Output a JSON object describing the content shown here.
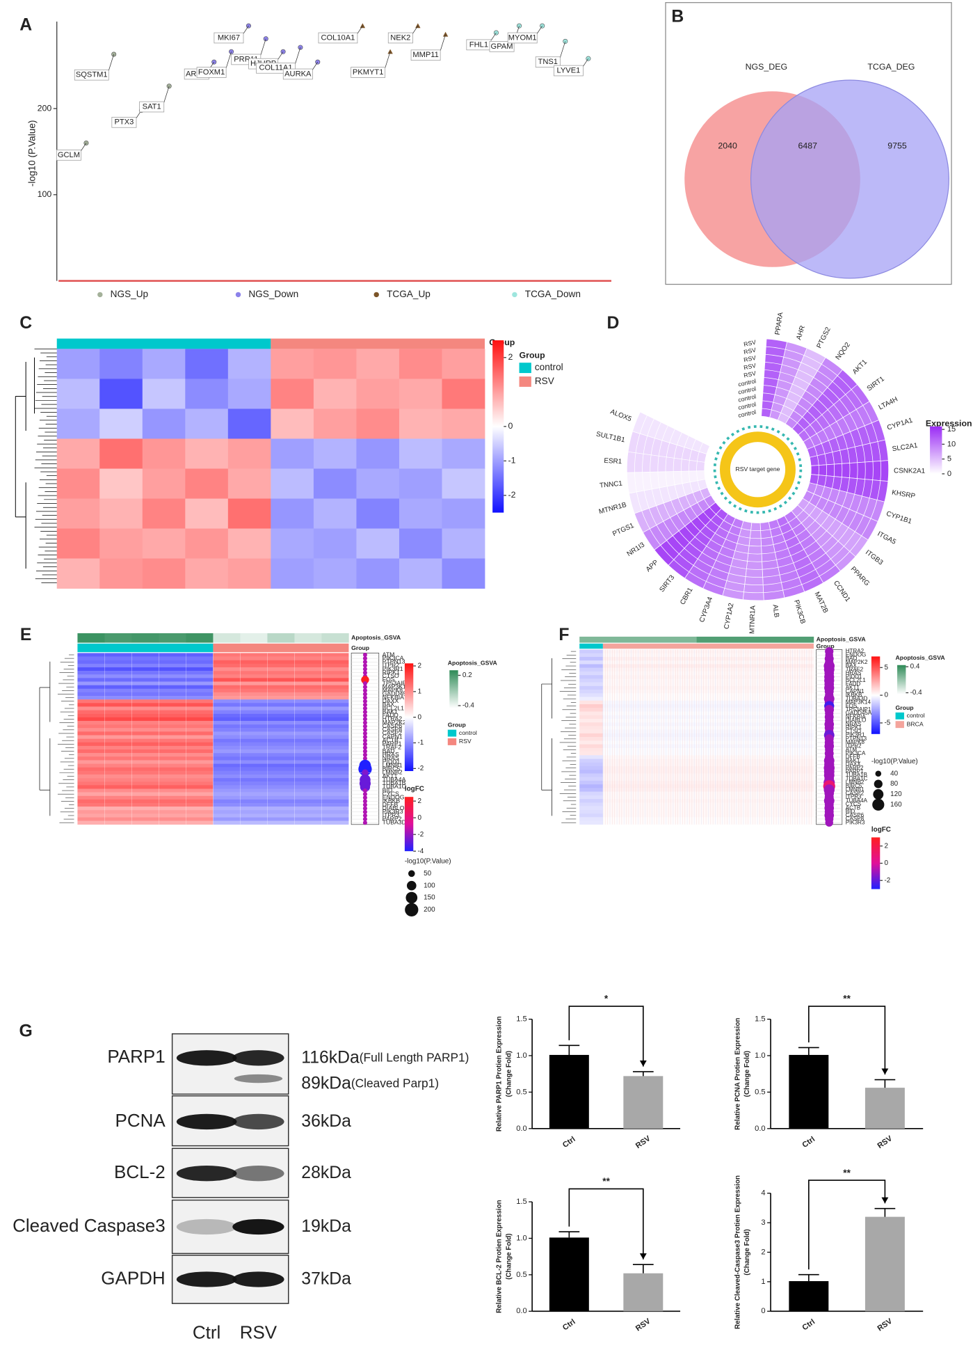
{
  "panels": [
    "A",
    "B",
    "C",
    "D",
    "E",
    "F",
    "G"
  ],
  "blot": {
    "rows": [
      {
        "protein": "PARP1",
        "size": "116kDa",
        "note": "(Full Length PARP1)"
      },
      {
        "protein": "PCNA",
        "size": "36kDa"
      },
      {
        "protein": "BCL-2",
        "size": "28kDa"
      },
      {
        "protein": "Cleaved Caspase3",
        "size": "19kDa"
      },
      {
        "protein": "GAPDH",
        "size": "37kDa"
      }
    ],
    "extra": {
      "size": "89kDa",
      "note": "(Cleaved Parp1)"
    },
    "lanes": [
      "Ctrl",
      "RSV"
    ]
  },
  "chart_data": [
    {
      "type": "manhattan",
      "ylabel": "-log10 (P.Value)",
      "ylim": [
        0,
        296
      ],
      "yticks": [
        100,
        200
      ],
      "series": [
        {
          "name": "NGS_Up",
          "color": "#a4b19a",
          "labels": [
            "GCLM",
            "SQSTM1",
            "PTX3",
            "SAT1"
          ],
          "values": [
            160,
            263,
            198,
            226
          ]
        },
        {
          "name": "NGS_Down",
          "color": "#8c82ea",
          "labels": [
            "AREG",
            "FOXM1",
            "MKI67",
            "PRR11",
            "HJURP",
            "COL11A1",
            "AURKA"
          ],
          "values": [
            254,
            266,
            296,
            281,
            266,
            271,
            254
          ]
        },
        {
          "name": "TCGA_Up",
          "color": "#7b5428",
          "labels": [
            "COL10A1",
            "PKMYT1",
            "NEK2",
            "MMP11"
          ],
          "values": [
            296,
            266,
            296,
            286
          ]
        },
        {
          "name": "TCGA_Down",
          "color": "#9ee6de",
          "labels": [
            "FHL1",
            "GPAM",
            "MYOM1",
            "TNS1",
            "LYVE1"
          ],
          "values": [
            288,
            296,
            296,
            278,
            258
          ]
        }
      ]
    },
    {
      "type": "venn",
      "sets": [
        "NGS_DEG",
        "TCGA_DEG"
      ],
      "values": [
        2040,
        6487,
        9755
      ],
      "colors": [
        "#f7a3a3",
        "#a5a2f5"
      ]
    },
    {
      "type": "heatmap",
      "legend_title": "Group",
      "groups": [
        {
          "name": "control",
          "color": "#00c8cc"
        },
        {
          "name": "RSV",
          "color": "#f4877f"
        }
      ],
      "clim": [
        -2.5,
        2.5
      ],
      "cticks": [
        2,
        0,
        -1,
        -2
      ],
      "values": [
        [
          -1.0,
          -1.3,
          -0.9,
          -1.5,
          -0.8,
          1.0,
          1.1,
          0.9,
          1.2,
          1.0
        ],
        [
          -0.7,
          -1.8,
          -0.6,
          -1.2,
          -0.9,
          1.3,
          0.8,
          1.0,
          0.9,
          1.4
        ],
        [
          -0.9,
          -0.5,
          -1.1,
          -0.8,
          -1.6,
          0.7,
          1.0,
          1.2,
          0.8,
          0.9
        ],
        [
          0.9,
          1.5,
          1.1,
          0.8,
          1.0,
          -1.0,
          -0.8,
          -1.1,
          -0.7,
          -0.9
        ],
        [
          1.2,
          0.6,
          1.0,
          1.3,
          0.9,
          -0.7,
          -1.2,
          -0.9,
          -1.0,
          -0.6
        ],
        [
          1.0,
          0.8,
          1.3,
          0.7,
          1.5,
          -1.1,
          -0.8,
          -1.3,
          -0.9,
          -1.0
        ],
        [
          1.3,
          1.0,
          0.9,
          1.1,
          0.8,
          -0.9,
          -1.0,
          -0.7,
          -1.2,
          -0.8
        ],
        [
          0.8,
          1.1,
          1.2,
          0.9,
          1.0,
          -1.0,
          -0.9,
          -1.1,
          -0.8,
          -1.2
        ]
      ]
    },
    {
      "type": "polar_heatmap",
      "legend_title": "Expression",
      "center_label": "RSV target gene",
      "clim": [
        0,
        16
      ],
      "cticks": [
        15,
        10,
        5,
        0
      ],
      "samples": [
        "RSV",
        "RSV",
        "RSV",
        "RSV",
        "RSV",
        "control",
        "control",
        "control",
        "control",
        "control"
      ],
      "categories": [
        "PPARA",
        "AHR",
        "PTGS2",
        "NQO2",
        "AKT1",
        "SIRT1",
        "LTA4H",
        "CYP1A1",
        "SLC2A1",
        "CSNK2A1",
        "KHSRP",
        "CYP1B1",
        "ITGA5",
        "ITGB3",
        "PPARG",
        "CCND1",
        "MAT2B",
        "PIK3CB",
        "ALB",
        "MTNR1A",
        "CYP1A2",
        "CYP3A4",
        "CBR1",
        "SIRT3",
        "APP",
        "NR1I3",
        "PTGS1",
        "MTNR1B",
        "TNNC1",
        "ESR1",
        "SULT1B1",
        "ALOX5"
      ],
      "values": [
        12,
        8,
        5,
        9,
        12,
        11,
        10,
        12,
        13,
        14,
        13,
        9,
        9,
        7,
        8,
        10,
        11,
        10,
        9,
        8,
        8,
        10,
        11,
        13,
        14,
        9,
        6,
        2,
        1,
        3,
        3,
        2
      ]
    },
    {
      "type": "gene_heatmap",
      "gsva_title": "Apoptosis_GSVA",
      "group_title": "Group",
      "groups": [
        {
          "name": "control",
          "color": "#00c8cc"
        },
        {
          "name": "RSV",
          "color": "#f4877f"
        }
      ],
      "clim": [
        -2.1,
        2.1
      ],
      "cticks": [
        2,
        1,
        0,
        -1,
        -2
      ],
      "gsva_lim": [
        -0.45,
        0.3
      ],
      "gsva_ticks": [
        0.2,
        -0.4
      ],
      "logfc_title": "logFC",
      "logfc_lim": [
        -4,
        2.5
      ],
      "logfc_ticks": [
        2,
        0,
        -2,
        -4
      ],
      "size_title": "-log10(P.Value)",
      "size_ticks": [
        50,
        100,
        150,
        200
      ],
      "gsva": [
        0.25,
        0.2,
        0.22,
        0.2,
        0.24,
        -0.3,
        -0.35,
        -0.2,
        -0.3,
        -0.25
      ],
      "genes": [
        "ATM",
        "PIK3CA",
        "PTPN13",
        "ITPR2",
        "PIK3R1",
        "RIPK1",
        "CTSO",
        "FOS",
        "TP53AIP1",
        "MAP3K14",
        "MAPK8",
        "GADD45A",
        "NFKBIA",
        "DAXX",
        "BAX",
        "BCL2L1",
        "BAK1",
        "FADD",
        "HTRA2",
        "MAP2K2",
        "CASP6",
        "CASP8",
        "CASP2",
        "CAPN1",
        "ACTB",
        "PARP1",
        "TRAF2",
        "BAD",
        "HRAS",
        "NRAS",
        "PIDD1",
        "LMNB1",
        "BIRC5",
        "LMNB2",
        "AKT1",
        "TUBA4A",
        "TUBA1B",
        "TUBA1C",
        "BID",
        "CYCS",
        "ENDOG",
        "IKBKB",
        "DFFB",
        "DIABLO",
        "PIK3R3",
        "ITPR3",
        "PARP2",
        "TUBA3D"
      ],
      "control": [
        -1.4,
        -1.2,
        -1.3,
        -1.1,
        -1.5,
        -1.2,
        -1.0,
        -1.3,
        -0.9,
        -1.4,
        -1.1,
        -1.2,
        -1.0,
        1.2,
        1.5,
        1.0,
        1.3,
        1.4,
        1.6,
        1.1,
        1.2,
        1.0,
        1.3,
        0.9,
        1.2,
        1.4,
        1.1,
        1.3,
        1.0,
        1.2,
        0.9,
        1.1,
        1.3,
        1.2,
        1.0,
        1.1,
        1.2,
        1.4,
        1.0,
        0.8,
        1.1,
        1.3,
        1.2,
        0.7,
        0.9,
        0.8,
        1.0,
        0.7
      ],
      "treated": [
        1.2,
        1.1,
        1.4,
        1.3,
        1.0,
        1.2,
        1.1,
        1.5,
        0.9,
        1.3,
        1.2,
        1.0,
        0.9,
        -1.0,
        -1.2,
        -0.9,
        -1.1,
        -1.3,
        -1.4,
        -1.0,
        -1.2,
        -1.1,
        -0.9,
        -1.0,
        -1.2,
        -1.1,
        -1.0,
        -0.9,
        -1.1,
        -1.2,
        -1.0,
        -1.3,
        -1.2,
        -1.1,
        -1.0,
        -1.2,
        -1.1,
        -1.0,
        -0.9,
        -0.8,
        -0.9,
        -1.1,
        -1.0,
        -0.7,
        -0.8,
        -0.7,
        -0.9,
        -0.6
      ],
      "neglog10p": [
        20,
        20,
        20,
        20,
        20,
        20,
        20,
        70,
        20,
        20,
        20,
        20,
        20,
        20,
        20,
        20,
        20,
        20,
        20,
        20,
        20,
        20,
        20,
        20,
        20,
        20,
        20,
        20,
        20,
        20,
        20,
        150,
        200,
        50,
        20,
        130,
        140,
        110,
        20,
        20,
        20,
        20,
        20,
        20,
        20,
        20,
        20,
        20
      ],
      "logfc": [
        -1,
        -1,
        -1,
        -1,
        -1,
        -1,
        -1,
        2.5,
        -1,
        -1,
        -1,
        -1,
        -1,
        -1,
        -1,
        -1,
        -1,
        -1,
        -1,
        -1,
        -1,
        -1,
        -1,
        -1,
        -1,
        -1,
        -1,
        -1,
        -1,
        -1,
        -1,
        -4,
        -4,
        -2,
        -1,
        -2.5,
        -2.5,
        -2.5,
        -1,
        -1,
        -1,
        -1,
        -1,
        -1,
        -1,
        -1,
        -1,
        -1
      ]
    },
    {
      "type": "gene_heatmap",
      "gsva_title": "Apoptosis_GSVA",
      "group_title": "Group",
      "groups": [
        {
          "name": "control",
          "color": "#00c8cc"
        },
        {
          "name": "BRCA",
          "color": "#f4a49c"
        }
      ],
      "clim": [
        -7,
        7
      ],
      "cticks": [
        5,
        0,
        -5
      ],
      "gsva_lim": [
        -0.45,
        0.45
      ],
      "gsva_ticks": [
        0.4,
        -0.4
      ],
      "logfc_title": "logFC",
      "logfc_lim": [
        -3,
        3
      ],
      "logfc_ticks": [
        2,
        0,
        -2
      ],
      "size_title": "-log10(P.Value)",
      "size_ticks": [
        40,
        80,
        120,
        160
      ],
      "gsva": [
        0.1,
        0.3
      ],
      "genes": [
        "HTRA2",
        "ENDOG",
        "BAD",
        "MAP2K2",
        "BAX",
        "TRAF2",
        "HRAS",
        "PIDD1",
        "BCL2L1",
        "FADD",
        "AKT1",
        "CAPN1",
        "IKBKB",
        "TUBA3D",
        "MAP3K14",
        "FOS",
        "TP53AIP1",
        "GADD45A",
        "NFKBIA",
        "DIABLO",
        "NRAS",
        "RIPK1",
        "CTSO",
        "PIK3R1",
        "PTPN13",
        "MAPK8",
        "ITPR2",
        "ATM",
        "PIK3CA",
        "DFFB",
        "BAK1",
        "DAXX",
        "PARP2",
        "PARP1",
        "TUBA1B",
        "TUBA1C",
        "LMNB2",
        "BIRC5",
        "LMNB1",
        "CASP2",
        "ITPR3",
        "TUBA4A",
        "CYCS",
        "ACTB",
        "BID",
        "CASP6",
        "CASP8",
        "PIK3R3"
      ],
      "control": [
        -1.5,
        -1.2,
        -1.8,
        -1.0,
        -2.0,
        -1.4,
        -1.1,
        -1.6,
        -1.3,
        -1.0,
        -1.5,
        -1.2,
        -0.9,
        -0.5,
        0.8,
        1.5,
        1.2,
        0.7,
        0.9,
        0.6,
        1.0,
        0.8,
        0.7,
        1.3,
        0.9,
        0.6,
        1.1,
        0.8,
        0.7,
        -0.8,
        -1.4,
        -1.6,
        -1.8,
        -2.0,
        -1.5,
        -1.3,
        -1.7,
        -2.2,
        -1.9,
        -1.2,
        -1.0,
        -1.4,
        -1.1,
        -0.9,
        -1.0,
        -1.2,
        -0.8,
        -0.7
      ],
      "treated": [
        0.3,
        0.2,
        0.4,
        0.2,
        0.5,
        0.3,
        0.2,
        0.3,
        0.2,
        0.2,
        0.3,
        0.2,
        0.1,
        0.1,
        -0.2,
        -0.3,
        -0.2,
        -0.1,
        -0.2,
        -0.1,
        -0.2,
        -0.1,
        -0.2,
        -0.3,
        -0.2,
        -0.1,
        -0.2,
        -0.1,
        -0.1,
        0.2,
        0.3,
        0.3,
        0.4,
        0.4,
        0.3,
        0.3,
        0.4,
        0.5,
        0.4,
        0.2,
        0.2,
        0.3,
        0.2,
        0.2,
        0.2,
        0.2,
        0.1,
        0.1
      ],
      "neglog10p": [
        80,
        70,
        90,
        80,
        130,
        120,
        100,
        110,
        110,
        100,
        110,
        90,
        80,
        120,
        90,
        110,
        100,
        80,
        90,
        80,
        100,
        90,
        80,
        120,
        90,
        90,
        100,
        80,
        90,
        80,
        120,
        110,
        130,
        120,
        120,
        100,
        140,
        160,
        130,
        100,
        90,
        120,
        90,
        100,
        90,
        100,
        80,
        70
      ],
      "logfc": [
        -1,
        -1,
        -1,
        -1,
        -1,
        -1,
        -1,
        -1,
        -1,
        -1,
        -1,
        -1,
        -1,
        -1,
        -1,
        -2.5,
        -1,
        -1,
        -1,
        -1,
        -1,
        -1,
        -1,
        -1.8,
        -1,
        -1,
        -1,
        -1,
        -1,
        -1,
        -1,
        -1,
        -1,
        -1,
        -1,
        -1,
        -1,
        1,
        -1,
        -1,
        -1,
        -1,
        -1,
        -1,
        -1,
        -1,
        -1,
        -1
      ]
    },
    {
      "type": "bar",
      "ylabel": [
        "Relative PARP1 Protien Expression",
        "(Change Fold)"
      ],
      "categories": [
        "Ctrl",
        "RSV"
      ],
      "values": [
        1.01,
        0.72
      ],
      "errors": [
        0.13,
        0.06
      ],
      "colors": [
        "#000000",
        "#a8a8a8"
      ],
      "significance": "*",
      "ylim": [
        0,
        1.5
      ],
      "yticks": [
        {
          "value": 0,
          "label": "0.0"
        },
        0.5,
        {
          "value": 1,
          "label": "1.0"
        },
        1.5
      ]
    },
    {
      "type": "bar",
      "ylabel": [
        "Relative PCNA Protien Expression",
        "(Change Fold)"
      ],
      "categories": [
        "Ctrl",
        "RSV"
      ],
      "values": [
        1.01,
        0.56
      ],
      "errors": [
        0.1,
        0.11
      ],
      "colors": [
        "#000000",
        "#a8a8a8"
      ],
      "significance": "**",
      "ylim": [
        0,
        1.5
      ],
      "yticks": [
        {
          "value": 0,
          "label": "0.0"
        },
        0.5,
        {
          "value": 1,
          "label": "1.0"
        },
        1.5
      ]
    },
    {
      "type": "bar",
      "ylabel": [
        "Relative BCL-2 Protien Expression",
        "(Change Fold)"
      ],
      "categories": [
        "Ctrl",
        "RSV"
      ],
      "values": [
        1.01,
        0.52
      ],
      "errors": [
        0.08,
        0.12
      ],
      "colors": [
        "#000000",
        "#a8a8a8"
      ],
      "significance": "**",
      "ylim": [
        0,
        1.5
      ],
      "yticks": [
        {
          "value": 0,
          "label": "0.0"
        },
        0.5,
        {
          "value": 1,
          "label": "1.0"
        },
        1.5
      ]
    },
    {
      "type": "bar",
      "ylabel": [
        "Relative Cleaved-Caspase3 Protien Expression",
        "(Change Fold)"
      ],
      "categories": [
        "Ctrl",
        "RSV"
      ],
      "values": [
        1.02,
        3.2
      ],
      "errors": [
        0.22,
        0.28
      ],
      "colors": [
        "#000000",
        "#a8a8a8"
      ],
      "significance": "**",
      "ylim": [
        0,
        4
      ],
      "yticks": [
        0,
        1,
        2,
        3,
        4
      ]
    }
  ]
}
